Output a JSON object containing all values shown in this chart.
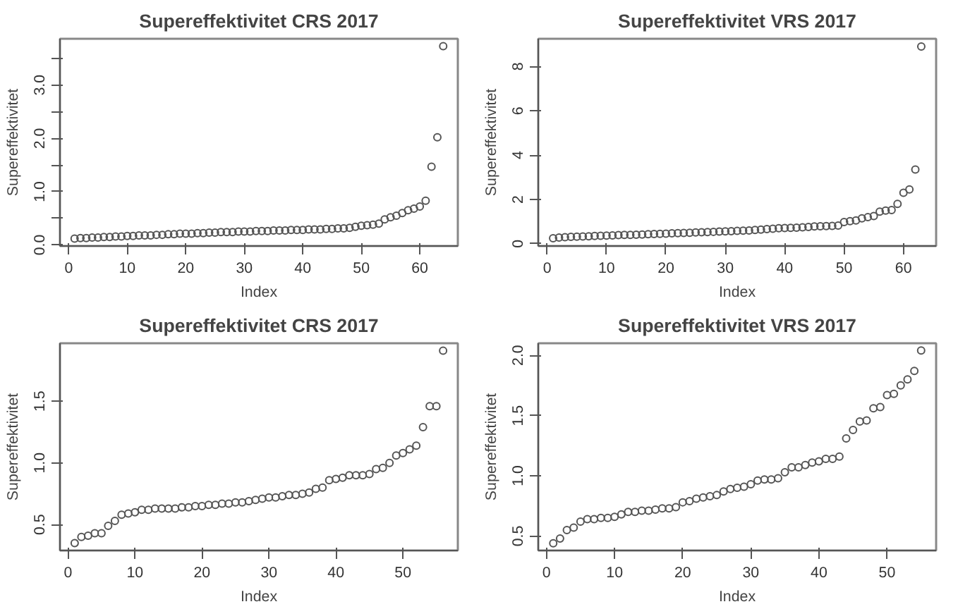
{
  "chart_data": [
    {
      "type": "scatter",
      "title": "Supereffektivitet CRS 2017",
      "xlabel": "Index",
      "ylabel": "Supereffektivitet",
      "marker": "circle",
      "grid": false,
      "x": [
        1,
        2,
        3,
        4,
        5,
        6,
        7,
        8,
        9,
        10,
        11,
        12,
        13,
        14,
        15,
        16,
        17,
        18,
        19,
        20,
        21,
        22,
        23,
        24,
        25,
        26,
        27,
        28,
        29,
        30,
        31,
        32,
        33,
        34,
        35,
        36,
        37,
        38,
        39,
        40,
        41,
        42,
        43,
        44,
        45,
        46,
        47,
        48,
        49,
        50,
        51,
        52,
        53,
        54,
        55,
        56,
        57,
        58,
        59,
        60,
        61,
        62,
        63,
        64
      ],
      "series": [
        {
          "color": "#555555",
          "values": [
            0.12,
            0.13,
            0.13,
            0.14,
            0.14,
            0.15,
            0.15,
            0.16,
            0.16,
            0.17,
            0.17,
            0.18,
            0.18,
            0.18,
            0.19,
            0.19,
            0.2,
            0.2,
            0.21,
            0.21,
            0.21,
            0.22,
            0.22,
            0.23,
            0.23,
            0.24,
            0.24,
            0.24,
            0.25,
            0.25,
            0.25,
            0.26,
            0.26,
            0.26,
            0.27,
            0.27,
            0.27,
            0.28,
            0.28,
            0.28,
            0.29,
            0.29,
            0.29,
            0.3,
            0.3,
            0.31,
            0.31,
            0.32,
            0.34,
            0.36,
            0.37,
            0.38,
            0.4,
            0.48,
            0.52,
            0.55,
            0.6,
            0.65,
            0.68,
            0.72,
            0.83,
            1.47,
            2.02,
            3.73
          ]
        }
      ],
      "xlim": [
        -1.5,
        66.5
      ],
      "ylim": [
        -0.02,
        3.87
      ],
      "xticks": [
        0,
        10,
        20,
        30,
        40,
        50,
        60
      ],
      "yticks": [
        {
          "value": 0,
          "label": "0.0"
        },
        {
          "value": 0.5,
          "label": null
        },
        {
          "value": 1,
          "label": "1.0"
        },
        {
          "value": 1.5,
          "label": null
        },
        {
          "value": 2,
          "label": "2.0"
        },
        {
          "value": 2.5,
          "label": null
        },
        {
          "value": 3,
          "label": "3.0"
        },
        {
          "value": 3.5,
          "label": null
        }
      ]
    },
    {
      "type": "scatter",
      "title": "Supereffektivitet VRS 2017",
      "xlabel": "Index",
      "ylabel": "Supereffektivitet",
      "marker": "circle",
      "grid": false,
      "x": [
        1,
        2,
        3,
        4,
        5,
        6,
        7,
        8,
        9,
        10,
        11,
        12,
        13,
        14,
        15,
        16,
        17,
        18,
        19,
        20,
        21,
        22,
        23,
        24,
        25,
        26,
        27,
        28,
        29,
        30,
        31,
        32,
        33,
        34,
        35,
        36,
        37,
        38,
        39,
        40,
        41,
        42,
        43,
        44,
        45,
        46,
        47,
        48,
        49,
        50,
        51,
        52,
        53,
        54,
        55,
        56,
        57,
        58,
        59,
        60,
        61,
        62,
        63
      ],
      "series": [
        {
          "color": "#555555",
          "values": [
            0.25,
            0.28,
            0.3,
            0.31,
            0.32,
            0.33,
            0.34,
            0.35,
            0.36,
            0.37,
            0.38,
            0.39,
            0.4,
            0.4,
            0.41,
            0.42,
            0.43,
            0.44,
            0.45,
            0.46,
            0.47,
            0.48,
            0.49,
            0.5,
            0.51,
            0.52,
            0.53,
            0.54,
            0.55,
            0.56,
            0.57,
            0.58,
            0.59,
            0.6,
            0.62,
            0.64,
            0.66,
            0.68,
            0.7,
            0.71,
            0.72,
            0.73,
            0.74,
            0.76,
            0.78,
            0.79,
            0.8,
            0.81,
            0.82,
            0.98,
            1.02,
            1.05,
            1.15,
            1.2,
            1.25,
            1.45,
            1.5,
            1.52,
            1.8,
            2.3,
            2.45,
            3.35,
            8.9
          ]
        }
      ],
      "xlim": [
        -1.5,
        65.5
      ],
      "ylim": [
        -0.1,
        9.25
      ],
      "xticks": [
        0,
        10,
        20,
        30,
        40,
        50,
        60
      ],
      "yticks": [
        0,
        2,
        4,
        6,
        8
      ]
    },
    {
      "type": "scatter",
      "title": "Supereffektivitet CRS 2017",
      "xlabel": "Index",
      "ylabel": "Supereffektivitet",
      "marker": "circle",
      "grid": false,
      "x": [
        1,
        2,
        3,
        4,
        5,
        6,
        7,
        8,
        9,
        10,
        11,
        12,
        13,
        14,
        15,
        16,
        17,
        18,
        19,
        20,
        21,
        22,
        23,
        24,
        25,
        26,
        27,
        28,
        29,
        30,
        31,
        32,
        33,
        34,
        35,
        36,
        37,
        38,
        39,
        40,
        41,
        42,
        43,
        44,
        45,
        46,
        47,
        48,
        49,
        50,
        51,
        52,
        53,
        54,
        55,
        56
      ],
      "series": [
        {
          "color": "#555555",
          "values": [
            0.35,
            0.4,
            0.41,
            0.43,
            0.43,
            0.49,
            0.53,
            0.58,
            0.59,
            0.6,
            0.62,
            0.62,
            0.63,
            0.63,
            0.63,
            0.63,
            0.64,
            0.64,
            0.65,
            0.65,
            0.66,
            0.66,
            0.67,
            0.67,
            0.68,
            0.68,
            0.69,
            0.7,
            0.71,
            0.72,
            0.72,
            0.73,
            0.74,
            0.74,
            0.75,
            0.76,
            0.79,
            0.8,
            0.86,
            0.87,
            0.88,
            0.9,
            0.9,
            0.9,
            0.91,
            0.95,
            0.96,
            1.0,
            1.06,
            1.08,
            1.11,
            1.14,
            1.29,
            1.46,
            1.46,
            1.91
          ]
        }
      ],
      "xlim": [
        -1.2,
        58.2
      ],
      "ylim": [
        0.29,
        1.97
      ],
      "xticks": [
        0,
        10,
        20,
        30,
        40,
        50
      ],
      "yticks": [
        0.5,
        {
          "value": 1,
          "label": "1.0"
        },
        1.5
      ]
    },
    {
      "type": "scatter",
      "title": "Supereffektivitet VRS 2017",
      "xlabel": "Index",
      "ylabel": "Supereffektivitet",
      "marker": "circle",
      "grid": false,
      "x": [
        1,
        2,
        3,
        4,
        5,
        6,
        7,
        8,
        9,
        10,
        11,
        12,
        13,
        14,
        15,
        16,
        17,
        18,
        19,
        20,
        21,
        22,
        23,
        24,
        25,
        26,
        27,
        28,
        29,
        30,
        31,
        32,
        33,
        34,
        35,
        36,
        37,
        38,
        39,
        40,
        41,
        42,
        43,
        44,
        45,
        46,
        47,
        48,
        49,
        50,
        51,
        52,
        53,
        54,
        55
      ],
      "series": [
        {
          "color": "#555555",
          "values": [
            0.44,
            0.48,
            0.55,
            0.57,
            0.62,
            0.64,
            0.64,
            0.65,
            0.65,
            0.66,
            0.68,
            0.7,
            0.7,
            0.71,
            0.71,
            0.72,
            0.73,
            0.73,
            0.74,
            0.78,
            0.79,
            0.81,
            0.82,
            0.83,
            0.84,
            0.87,
            0.89,
            0.9,
            0.91,
            0.93,
            0.96,
            0.97,
            0.97,
            0.98,
            1.03,
            1.07,
            1.07,
            1.09,
            1.11,
            1.12,
            1.14,
            1.14,
            1.16,
            1.31,
            1.38,
            1.45,
            1.46,
            1.56,
            1.57,
            1.67,
            1.68,
            1.75,
            1.8,
            1.87,
            2.04
          ]
        }
      ],
      "xlim": [
        -1.2,
        57.2
      ],
      "ylim": [
        0.38,
        2.1
      ],
      "xticks": [
        0,
        10,
        20,
        30,
        40,
        50
      ],
      "yticks": [
        0.5,
        {
          "value": 1,
          "label": "1.0"
        },
        1.5,
        {
          "value": 2,
          "label": "2.0"
        }
      ]
    }
  ]
}
